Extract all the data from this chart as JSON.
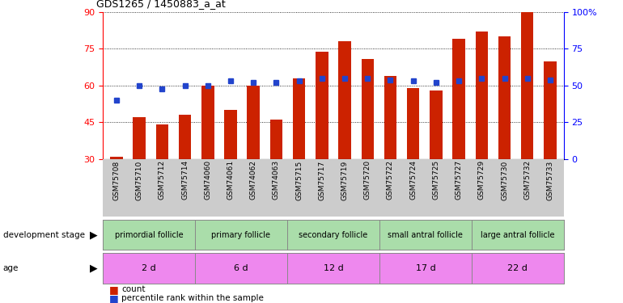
{
  "title": "GDS1265 / 1450883_a_at",
  "samples": [
    "GSM75708",
    "GSM75710",
    "GSM75712",
    "GSM75714",
    "GSM74060",
    "GSM74061",
    "GSM74062",
    "GSM74063",
    "GSM75715",
    "GSM75717",
    "GSM75719",
    "GSM75720",
    "GSM75722",
    "GSM75724",
    "GSM75725",
    "GSM75727",
    "GSM75729",
    "GSM75730",
    "GSM75732",
    "GSM75733"
  ],
  "bar_heights": [
    31,
    47,
    44,
    48,
    60,
    50,
    60,
    46,
    63,
    74,
    78,
    71,
    64,
    59,
    58,
    79,
    82,
    80,
    90,
    70
  ],
  "blue_y_right": [
    40,
    50,
    48,
    50,
    50,
    53,
    52,
    52,
    53,
    55,
    55,
    55,
    54,
    53,
    52,
    53,
    55,
    55,
    55,
    54
  ],
  "group_labels": [
    "primordial follicle",
    "primary follicle",
    "secondary follicle",
    "small antral follicle",
    "large antral follicle"
  ],
  "group_starts": [
    0,
    4,
    8,
    12,
    16
  ],
  "group_ends": [
    4,
    8,
    12,
    16,
    20
  ],
  "group_color": "#aaddaa",
  "age_labels": [
    "2 d",
    "6 d",
    "12 d",
    "17 d",
    "22 d"
  ],
  "age_color": "#ee88ee",
  "ylim_left": [
    30,
    90
  ],
  "ylim_right": [
    0,
    100
  ],
  "yticks_left": [
    30,
    45,
    60,
    75,
    90
  ],
  "yticks_right": [
    0,
    25,
    50,
    75,
    100
  ],
  "bar_color": "#cc2200",
  "blue_color": "#2244cc",
  "xlabels_bg": "#cccccc",
  "background": "#ffffff"
}
